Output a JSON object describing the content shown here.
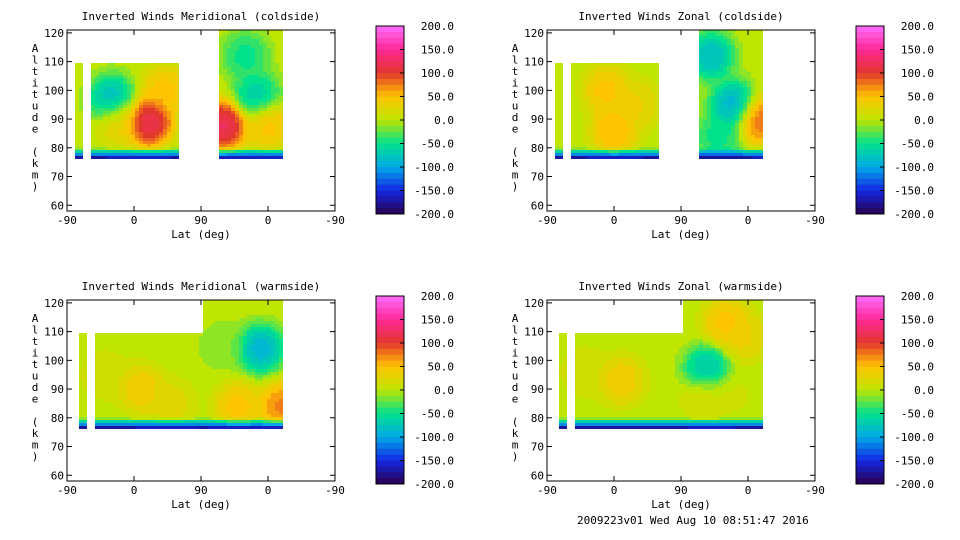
{
  "footer": "2009223v01 Wed Aug 10 08:51:47 2016",
  "chart_data": [
    {
      "type": "heatmap",
      "title": "Inverted Winds Meridional (coldside)",
      "xlabel": "Lat (deg)",
      "ylabel": "Altitude (km)",
      "x_ticks": [
        "-90",
        "0",
        "90",
        "0",
        "-90"
      ],
      "y_ticks": [
        60,
        70,
        80,
        90,
        100,
        110,
        120
      ],
      "ylim": [
        58,
        121
      ],
      "colorbar_ticks": [
        "200.0",
        "150.0",
        "100.0",
        "50.0",
        "0.0",
        "-50.0",
        "-100.0",
        "-150.0",
        "-200.0"
      ],
      "colorbar_range": [
        -200,
        200
      ],
      "x_segments": [
        [
          -80,
          -70
        ],
        [
          -60,
          60
        ],
        [
          112,
          200
        ]
      ],
      "alt_range": [
        76,
        110
      ],
      "blobs": [
        {
          "x": -30,
          "y": 97,
          "value": -100
        },
        {
          "x": 20,
          "y": 89,
          "value": 150
        },
        {
          "x": -20,
          "y": 89,
          "value": 40
        },
        {
          "x": 40,
          "y": 100,
          "value": 60
        },
        {
          "x": 180,
          "y": 88,
          "value": 60
        },
        {
          "x": 120,
          "y": 88,
          "value": 150
        },
        {
          "x": 150,
          "y": 112,
          "value": -60
        },
        {
          "x": 165,
          "y": 98,
          "value": -80
        }
      ]
    },
    {
      "type": "heatmap",
      "title": "Inverted Winds Zonal (coldside)",
      "xlabel": "Lat (deg)",
      "ylabel": "Altitude (km)",
      "x_ticks": [
        "-90",
        "0",
        "90",
        "0",
        "-90"
      ],
      "y_ticks": [
        60,
        70,
        80,
        90,
        100,
        110,
        120
      ],
      "ylim": [
        58,
        121
      ],
      "colorbar_ticks": [
        "200.0",
        "150.0",
        "100.0",
        "50.0",
        "0.0",
        "-50.0",
        "-100.0",
        "-150.0",
        "-200.0"
      ],
      "colorbar_range": [
        -200,
        200
      ],
      "x_segments": [
        [
          -80,
          -70
        ],
        [
          -60,
          60
        ],
        [
          112,
          200
        ]
      ],
      "alt_range": [
        76,
        110
      ],
      "blobs": [
        {
          "x": -10,
          "y": 100,
          "value": 60
        },
        {
          "x": 0,
          "y": 86,
          "value": 70
        },
        {
          "x": 30,
          "y": 95,
          "value": 40
        },
        {
          "x": 160,
          "y": 95,
          "value": -110
        },
        {
          "x": 130,
          "y": 112,
          "value": -100
        },
        {
          "x": 195,
          "y": 90,
          "value": 100
        },
        {
          "x": 140,
          "y": 84,
          "value": -60
        }
      ]
    },
    {
      "type": "heatmap",
      "title": "Inverted Winds Meridional (warmside)",
      "xlabel": "Lat (deg)",
      "ylabel": "Altitude (km)",
      "x_ticks": [
        "-90",
        "0",
        "90",
        "0",
        "-90"
      ],
      "y_ticks": [
        60,
        70,
        80,
        90,
        100,
        110,
        120
      ],
      "ylim": [
        58,
        121
      ],
      "colorbar_ticks": [
        "200.0",
        "150.0",
        "100.0",
        "50.0",
        "0.0",
        "-50.0",
        "-100.0",
        "-150.0",
        "-200.0"
      ],
      "colorbar_range": [
        -200,
        200
      ],
      "x_segments": [
        [
          -75,
          -65
        ],
        [
          -55,
          90
        ],
        [
          92,
          200
        ]
      ],
      "alt_range": [
        76,
        110
      ],
      "blobs": [
        {
          "x": 10,
          "y": 90,
          "value": 50
        },
        {
          "x": -40,
          "y": 95,
          "value": 20
        },
        {
          "x": 50,
          "y": 85,
          "value": 30
        },
        {
          "x": 170,
          "y": 104,
          "value": -110
        },
        {
          "x": 120,
          "y": 105,
          "value": -20
        },
        {
          "x": 200,
          "y": 84,
          "value": 90
        },
        {
          "x": 140,
          "y": 84,
          "value": 60
        }
      ]
    },
    {
      "type": "heatmap",
      "title": "Inverted Winds Zonal (warmside)",
      "xlabel": "Lat (deg)",
      "ylabel": "Altitude (km)",
      "x_ticks": [
        "-90",
        "0",
        "90",
        "0",
        "-90"
      ],
      "y_ticks": [
        60,
        70,
        80,
        90,
        100,
        110,
        120
      ],
      "ylim": [
        58,
        121
      ],
      "colorbar_ticks": [
        "200.0",
        "150.0",
        "100.0",
        "50.0",
        "0.0",
        "-50.0",
        "-100.0",
        "-150.0",
        "-200.0"
      ],
      "colorbar_range": [
        -200,
        200
      ],
      "x_segments": [
        [
          -75,
          -65
        ],
        [
          -55,
          90
        ],
        [
          92,
          200
        ]
      ],
      "alt_range": [
        76,
        110
      ],
      "blobs": [
        {
          "x": 10,
          "y": 93,
          "value": 50
        },
        {
          "x": -40,
          "y": 96,
          "value": 20
        },
        {
          "x": 125,
          "y": 97,
          "value": -90
        },
        {
          "x": 150,
          "y": 113,
          "value": 60
        },
        {
          "x": 175,
          "y": 108,
          "value": 40
        },
        {
          "x": 160,
          "y": 88,
          "value": 10
        },
        {
          "x": 120,
          "y": 87,
          "value": 20
        }
      ]
    }
  ]
}
